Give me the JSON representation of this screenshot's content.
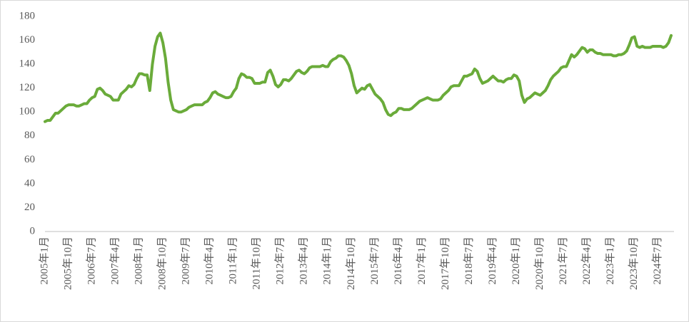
{
  "chart_data": {
    "type": "line",
    "categories": [
      "2005年1月",
      null,
      null,
      null,
      null,
      null,
      null,
      null,
      null,
      "2005年10月",
      null,
      null,
      null,
      null,
      null,
      null,
      null,
      null,
      "2006年7月",
      null,
      null,
      null,
      null,
      null,
      null,
      null,
      null,
      "2007年4月",
      null,
      null,
      null,
      null,
      null,
      null,
      null,
      null,
      "2008年1月",
      null,
      null,
      null,
      null,
      null,
      null,
      null,
      null,
      "2008年10月",
      null,
      null,
      null,
      null,
      null,
      null,
      null,
      null,
      "2009年7月",
      null,
      null,
      null,
      null,
      null,
      null,
      null,
      null,
      "2010年4月",
      null,
      null,
      null,
      null,
      null,
      null,
      null,
      null,
      "2011年1月",
      null,
      null,
      null,
      null,
      null,
      null,
      null,
      null,
      "2011年10月",
      null,
      null,
      null,
      null,
      null,
      null,
      null,
      null,
      "2012年7月",
      null,
      null,
      null,
      null,
      null,
      null,
      null,
      null,
      "2013年4月",
      null,
      null,
      null,
      null,
      null,
      null,
      null,
      null,
      "2014年1月",
      null,
      null,
      null,
      null,
      null,
      null,
      null,
      null,
      "2014年10月",
      null,
      null,
      null,
      null,
      null,
      null,
      null,
      null,
      "2015年7月",
      null,
      null,
      null,
      null,
      null,
      null,
      null,
      null,
      "2016年4月",
      null,
      null,
      null,
      null,
      null,
      null,
      null,
      null,
      "2017年1月",
      null,
      null,
      null,
      null,
      null,
      null,
      null,
      null,
      "2017年10月",
      null,
      null,
      null,
      null,
      null,
      null,
      null,
      null,
      "2018年7月",
      null,
      null,
      null,
      null,
      null,
      null,
      null,
      null,
      "2019年4月",
      null,
      null,
      null,
      null,
      null,
      null,
      null,
      null,
      "2020年1月",
      null,
      null,
      null,
      null,
      null,
      null,
      null,
      null,
      "2020年10月",
      null,
      null,
      null,
      null,
      null,
      null,
      null,
      null,
      "2021年7月",
      null,
      null,
      null,
      null,
      null,
      null,
      null,
      null,
      "2022年4月",
      null,
      null,
      null,
      null,
      null,
      null,
      null,
      null,
      "2023年1月",
      null,
      null,
      null,
      null,
      null,
      null,
      null,
      null,
      "2023年10月",
      null,
      null,
      null,
      null,
      null,
      null,
      null,
      null,
      "2024年7月",
      null,
      null,
      null,
      null,
      null
    ],
    "values": [
      92,
      93,
      93,
      96,
      99,
      99,
      101,
      103,
      105,
      106,
      106,
      106,
      105,
      105,
      106,
      107,
      107,
      110,
      112,
      113,
      119,
      120,
      118,
      115,
      114,
      113,
      110,
      110,
      110,
      115,
      117,
      119,
      122,
      121,
      123,
      128,
      132,
      132,
      131,
      131,
      118,
      140,
      155,
      163,
      166,
      158,
      145,
      125,
      110,
      102,
      101,
      100,
      100,
      101,
      102,
      104,
      105,
      106,
      106,
      106,
      106,
      108,
      109,
      112,
      116,
      117,
      115,
      114,
      113,
      112,
      112,
      113,
      117,
      120,
      128,
      132,
      131,
      129,
      129,
      128,
      124,
      124,
      124,
      125,
      125,
      133,
      135,
      130,
      123,
      121,
      123,
      127,
      127,
      126,
      128,
      131,
      134,
      135,
      133,
      132,
      134,
      137,
      138,
      138,
      138,
      138,
      139,
      138,
      138,
      142,
      144,
      145,
      147,
      147,
      146,
      143,
      139,
      132,
      122,
      116,
      118,
      120,
      119,
      122,
      123,
      119,
      115,
      113,
      111,
      108,
      102,
      98,
      97,
      99,
      100,
      103,
      103,
      102,
      102,
      102,
      103,
      105,
      107,
      109,
      110,
      111,
      112,
      111,
      110,
      110,
      110,
      111,
      114,
      116,
      118,
      121,
      122,
      122,
      122,
      126,
      130,
      130,
      131,
      132,
      136,
      134,
      128,
      124,
      125,
      126,
      128,
      130,
      128,
      126,
      126,
      125,
      127,
      128,
      128,
      131,
      130,
      126,
      114,
      108,
      111,
      112,
      114,
      116,
      115,
      114,
      116,
      118,
      122,
      127,
      130,
      132,
      134,
      137,
      138,
      138,
      143,
      148,
      146,
      148,
      151,
      154,
      153,
      150,
      152,
      152,
      150,
      149,
      149,
      148,
      148,
      148,
      148,
      147,
      147,
      148,
      148,
      149,
      151,
      156,
      162,
      163,
      155,
      154,
      155,
      154,
      154,
      154,
      155,
      155,
      155,
      155,
      154,
      155,
      158,
      164
    ],
    "color": "#6aab3a",
    "ylim": [
      0,
      180
    ],
    "yticks": [
      0,
      20,
      40,
      60,
      80,
      100,
      120,
      140,
      160,
      180
    ],
    "grid": false
  }
}
